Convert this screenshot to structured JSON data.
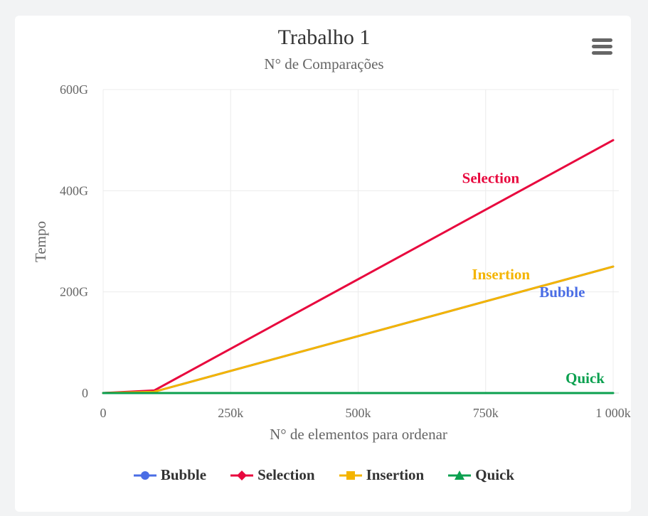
{
  "chart_data": {
    "type": "line",
    "title": "Trabalho 1",
    "subtitle": "N° de Comparações",
    "xlabel": "N° de elementos para ordenar",
    "ylabel": "Tempo",
    "x": [
      0,
      100000,
      1000000
    ],
    "xlim": [
      0,
      1000000
    ],
    "ylim": [
      0,
      600000000000
    ],
    "x_ticks": [
      {
        "value": 0,
        "label": "0"
      },
      {
        "value": 250000,
        "label": "250k"
      },
      {
        "value": 500000,
        "label": "500k"
      },
      {
        "value": 750000,
        "label": "750k"
      },
      {
        "value": 1000000,
        "label": "1 000k"
      }
    ],
    "y_ticks": [
      {
        "value": 0,
        "label": "0"
      },
      {
        "value": 200000000000,
        "label": "200G"
      },
      {
        "value": 400000000000,
        "label": "400G"
      },
      {
        "value": 600000000000,
        "label": "600G"
      }
    ],
    "grid": true,
    "legend_position": "bottom",
    "series": [
      {
        "name": "Bubble",
        "color": "#4a6de5",
        "marker": "circle",
        "values": [
          0,
          2500000000,
          250000000000
        ],
        "label": {
          "text": "Bubble",
          "x": 900000,
          "y": 190000000000
        }
      },
      {
        "name": "Selection",
        "color": "#e8083e",
        "marker": "diamond",
        "values": [
          0,
          5000000000,
          500000000000
        ],
        "label": {
          "text": "Selection",
          "x": 760000,
          "y": 415000000000
        }
      },
      {
        "name": "Insertion",
        "color": "#f4b400",
        "marker": "square",
        "values": [
          0,
          2500000000,
          250000000000
        ],
        "label": {
          "text": "Insertion",
          "x": 780000,
          "y": 225000000000
        }
      },
      {
        "name": "Quick",
        "color": "#0ba04f",
        "marker": "triangle",
        "values": [
          0,
          1700000,
          20000000
        ],
        "label": {
          "text": "Quick",
          "x": 945000,
          "y": 20000000000
        }
      }
    ]
  },
  "menu": {
    "icon": "hamburger-menu-icon"
  }
}
